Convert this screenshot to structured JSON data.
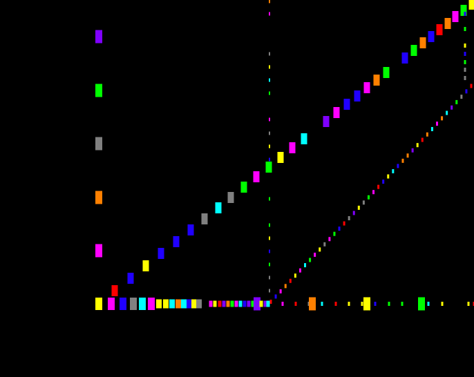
{
  "chart_data": {
    "type": "scatter",
    "title": "",
    "xlabel": "",
    "ylabel": "",
    "grid": false,
    "background": "#000000",
    "palette": {
      "red": "#ff0000",
      "orange": "#ff8000",
      "yellow": "#ffff00",
      "green": "#00ff00",
      "cyan": "#00ffff",
      "blue": "#2000ff",
      "purple": "#8000ff",
      "magenta": "#ff00ff",
      "gray": "#808080"
    },
    "legend_markers": [
      "purple",
      "green",
      "gray",
      "orange",
      "magenta"
    ],
    "series": [
      {
        "marker": "large",
        "colors": [
          "red",
          "blue",
          "yellow",
          "blue",
          "blue",
          "blue",
          "gray",
          "cyan",
          "gray",
          "green",
          "magenta",
          "green",
          "yellow",
          "magenta",
          "cyan",
          "purple",
          "magenta",
          "blue",
          "blue",
          "magenta",
          "orange",
          "green",
          "blue",
          "green",
          "orange",
          "blue",
          "red",
          "orange",
          "magenta",
          "green",
          "yellow"
        ]
      },
      {
        "marker": "small",
        "colors": [
          "red",
          "blue",
          "magenta",
          "orange",
          "red",
          "yellow",
          "magenta",
          "cyan",
          "green",
          "magenta",
          "yellow",
          "gray",
          "magenta",
          "green",
          "blue",
          "red",
          "gray",
          "purple",
          "yellow",
          "gray",
          "green",
          "magenta",
          "red",
          "blue",
          "yellow",
          "cyan",
          "blue",
          "orange",
          "orange",
          "purple",
          "yellow",
          "red",
          "orange",
          "cyan",
          "magenta",
          "orange",
          "cyan",
          "purple",
          "green",
          "gray",
          "blue",
          "red"
        ]
      },
      {
        "marker": "baseline",
        "colors": [
          "yellow",
          "magenta",
          "blue",
          "gray",
          "cyan",
          "magenta",
          "yellow",
          "yellow",
          "cyan",
          "orange",
          "cyan",
          "blue",
          "yellow",
          "gray",
          "magenta",
          "yellow",
          "red",
          "purple",
          "orange",
          "green",
          "magenta",
          "cyan",
          "blue",
          "purple",
          "green",
          "purple",
          "yellow",
          "purple",
          "cyan",
          "magenta",
          "red",
          "gray",
          "orange",
          "cyan",
          "red",
          "yellow",
          "yellow",
          "yellow",
          "blue",
          "green",
          "green",
          "green",
          "cyan",
          "yellow",
          "yellow",
          "red",
          "orange"
        ]
      },
      {
        "marker": "vertical",
        "colors": [
          "orange",
          "magenta",
          "gray",
          "yellow",
          "cyan",
          "green",
          "magenta",
          "gray",
          "yellow",
          "blue",
          "green",
          "green",
          "yellow",
          "blue",
          "green",
          "gray",
          "gray"
        ]
      },
      {
        "marker": "vertical-right",
        "colors": [
          "blue",
          "green",
          "yellow",
          "blue",
          "green",
          "gray",
          "gray"
        ]
      }
    ]
  }
}
